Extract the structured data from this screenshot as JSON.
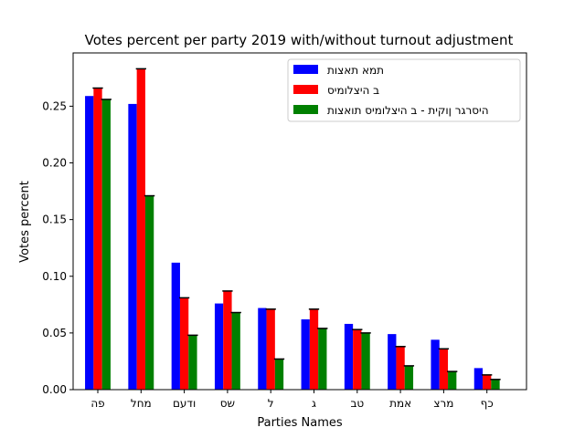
{
  "chart_data": {
    "type": "bar",
    "title": "Votes percent per party 2019 with/without turnout adjustment",
    "xlabel": "Parties Names",
    "ylabel": "Votes percent",
    "ylim": [
      0,
      0.297
    ],
    "yticks": [
      "0.00",
      "0.05",
      "0.10",
      "0.15",
      "0.20",
      "0.25"
    ],
    "ytick_values": [
      0,
      0.05,
      0.1,
      0.15,
      0.2,
      0.25
    ],
    "grid": false,
    "legend_position": "top-right",
    "categories": [
      "פה",
      "מחל",
      "ודעם",
      "שס",
      "ל",
      "ג",
      "טב",
      "אמת",
      "מרצ",
      "כף"
    ],
    "series": [
      {
        "name": "תמא תאצות",
        "color": "#0000ff",
        "values": [
          0.259,
          0.252,
          0.112,
          0.076,
          0.072,
          0.062,
          0.058,
          0.049,
          0.044,
          0.019
        ],
        "error_bars": false
      },
      {
        "name": "ב היצלומיס",
        "color": "#ff0000",
        "values": [
          0.266,
          0.283,
          0.081,
          0.087,
          0.071,
          0.071,
          0.053,
          0.038,
          0.036,
          0.013
        ],
        "error_bars": true
      },
      {
        "name": "היסרגר ןוקית - ב היצלומיס תואצות",
        "color": "#008000",
        "values": [
          0.256,
          0.171,
          0.048,
          0.068,
          0.027,
          0.054,
          0.05,
          0.021,
          0.016,
          0.009
        ],
        "error_bars": true
      }
    ]
  }
}
